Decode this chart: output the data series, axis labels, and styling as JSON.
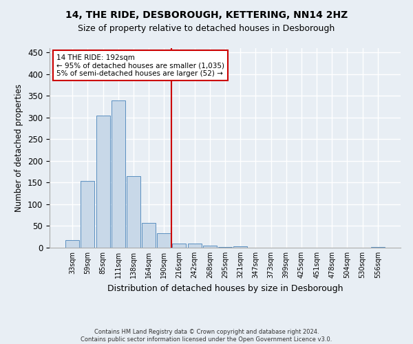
{
  "title": "14, THE RIDE, DESBOROUGH, KETTERING, NN14 2HZ",
  "subtitle": "Size of property relative to detached houses in Desborough",
  "xlabel": "Distribution of detached houses by size in Desborough",
  "ylabel": "Number of detached properties",
  "footer1": "Contains HM Land Registry data © Crown copyright and database right 2024.",
  "footer2": "Contains public sector information licensed under the Open Government Licence v3.0.",
  "bar_labels": [
    "33sqm",
    "59sqm",
    "85sqm",
    "111sqm",
    "138sqm",
    "164sqm",
    "190sqm",
    "216sqm",
    "242sqm",
    "268sqm",
    "295sqm",
    "321sqm",
    "347sqm",
    "373sqm",
    "399sqm",
    "425sqm",
    "451sqm",
    "478sqm",
    "504sqm",
    "530sqm",
    "556sqm"
  ],
  "bar_values": [
    17,
    154,
    305,
    340,
    165,
    57,
    34,
    10,
    9,
    5,
    1,
    3,
    0,
    0,
    0,
    0,
    0,
    0,
    0,
    0,
    2
  ],
  "bar_color": "#c8d8e8",
  "bar_edge_color": "#5a8fc0",
  "vline_x": 6.5,
  "vline_color": "#cc0000",
  "annotation_line1": "14 THE RIDE: 192sqm",
  "annotation_line2": "← 95% of detached houses are smaller (1,035)",
  "annotation_line3": "5% of semi-detached houses are larger (52) →",
  "annotation_box_color": "#cc0000",
  "ylim": [
    0,
    460
  ],
  "yticks": [
    0,
    50,
    100,
    150,
    200,
    250,
    300,
    350,
    400,
    450
  ],
  "background_color": "#e8eef4",
  "plot_background": "#e8eef4",
  "grid_color": "#ffffff",
  "title_fontsize": 10,
  "subtitle_fontsize": 9
}
